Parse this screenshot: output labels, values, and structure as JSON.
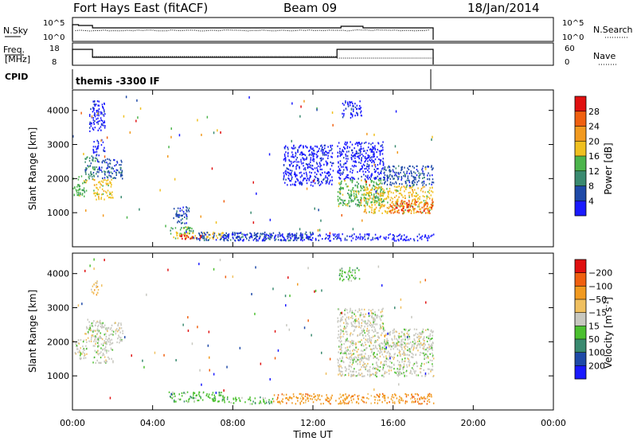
{
  "header": {
    "radar": "Fort Hays East (fitACF)",
    "beam": "Beam 09",
    "date": "18/Jan/2014"
  },
  "status_panels": {
    "nsky": {
      "label": "N.Sky",
      "left_ticks": [
        "10^5",
        "10^0"
      ],
      "right_ticks": [
        "10^5",
        "10^0"
      ],
      "right_label": "N.Search"
    },
    "freq": {
      "label_line1": "Freq.",
      "label_line2": "[MHz]",
      "left_ticks": [
        "18",
        "8"
      ],
      "right_ticks": [
        "60",
        "0"
      ],
      "right_label": "Nave"
    },
    "cpid": {
      "label": "CPID",
      "value": "themis -3300 IF"
    }
  },
  "chart_data": [
    {
      "type": "heatmap",
      "name": "power-panel",
      "ylabel": "Slant Range [km]",
      "xlabel": "",
      "xlim_hours": [
        0,
        24
      ],
      "ylim": [
        0,
        4600
      ],
      "y_ticks": [
        1000,
        2000,
        3000,
        4000
      ],
      "colorbar": {
        "label": "Power [dB]",
        "ticks": [
          "4",
          "8",
          "12",
          "16",
          "20",
          "24",
          "28"
        ],
        "colors": [
          "#1a1aff",
          "#1f4aa8",
          "#3a8a70",
          "#4cb54c",
          "#f0c020",
          "#f29a20",
          "#f06010",
          "#e01010"
        ]
      },
      "regions": [
        {
          "t0": 0.0,
          "t1": 0.7,
          "r0": 1500,
          "r1": 2100,
          "level": 3
        },
        {
          "t0": 0.6,
          "t1": 1.2,
          "r0": 2000,
          "r1": 2700,
          "level": 2
        },
        {
          "t0": 1.0,
          "t1": 2.0,
          "r0": 1400,
          "r1": 2000,
          "level": 4
        },
        {
          "t0": 1.2,
          "t1": 2.5,
          "r0": 2000,
          "r1": 2600,
          "level": 1
        },
        {
          "t0": 1.0,
          "t1": 1.6,
          "r0": 2700,
          "r1": 3200,
          "level": 0
        },
        {
          "t0": 0.8,
          "t1": 1.6,
          "r0": 3400,
          "r1": 4300,
          "level": 0
        },
        {
          "t0": 5.0,
          "t1": 5.8,
          "r0": 700,
          "r1": 1200,
          "level": 1
        },
        {
          "t0": 4.8,
          "t1": 6.0,
          "r0": 400,
          "r1": 600,
          "level": 3
        },
        {
          "t0": 5.0,
          "t1": 7.5,
          "r0": 250,
          "r1": 450,
          "level": 4
        },
        {
          "t0": 5.3,
          "t1": 6.4,
          "r0": 250,
          "r1": 380,
          "level": 7
        },
        {
          "t0": 6.0,
          "t1": 12.0,
          "r0": 200,
          "r1": 450,
          "level": 1
        },
        {
          "t0": 7.5,
          "t1": 18.0,
          "r0": 200,
          "r1": 400,
          "level": 0
        },
        {
          "t0": 13.2,
          "t1": 15.5,
          "r0": 1200,
          "r1": 2000,
          "level": 3
        },
        {
          "t0": 14.5,
          "t1": 18.0,
          "r0": 1000,
          "r1": 1800,
          "level": 4
        },
        {
          "t0": 15.8,
          "t1": 18.0,
          "r0": 1000,
          "r1": 1400,
          "level": 6
        },
        {
          "t0": 13.2,
          "t1": 15.5,
          "r0": 2000,
          "r1": 3100,
          "level": 0
        },
        {
          "t0": 15.5,
          "t1": 18.0,
          "r0": 1800,
          "r1": 2400,
          "level": 1
        },
        {
          "t0": 13.4,
          "t1": 14.4,
          "r0": 3800,
          "r1": 4300,
          "level": 0
        },
        {
          "t0": 10.5,
          "t1": 13.0,
          "r0": 1800,
          "r1": 3000,
          "level": 0
        }
      ]
    },
    {
      "type": "heatmap",
      "name": "velocity-panel",
      "ylabel": "Slant Range [km]",
      "xlabel": "Time UT",
      "xlim_hours": [
        0,
        24
      ],
      "ylim": [
        0,
        4600
      ],
      "y_ticks": [
        1000,
        2000,
        3000,
        4000
      ],
      "x_tick_labels": [
        "00:00",
        "04:00",
        "08:00",
        "12:00",
        "16:00",
        "20:00",
        "00:00"
      ],
      "colorbar": {
        "label": "Velocity [m s",
        "label_sup": "-1",
        "label_close": "]",
        "ticks": [
          "200",
          "100",
          "50",
          "15",
          "−15",
          "−50",
          "−100",
          "−200"
        ],
        "colors": [
          "#1a1aff",
          "#1f4aa8",
          "#3a8a70",
          "#4cc030",
          "#c8c8c0",
          "#f0c060",
          "#f29a20",
          "#f06010",
          "#e01010"
        ]
      },
      "regions": [
        {
          "t0": 0.0,
          "t1": 0.7,
          "r0": 1500,
          "r1": 2100,
          "level": 4
        },
        {
          "t0": 0.6,
          "t1": 1.4,
          "r0": 2000,
          "r1": 2700,
          "level": 4
        },
        {
          "t0": 1.0,
          "t1": 2.0,
          "r0": 1400,
          "r1": 2000,
          "level": 4
        },
        {
          "t0": 1.2,
          "t1": 2.5,
          "r0": 2000,
          "r1": 2600,
          "level": 4
        },
        {
          "t0": 0.9,
          "t1": 1.3,
          "r0": 3400,
          "r1": 3800,
          "level": 5
        },
        {
          "t0": 4.8,
          "t1": 7.5,
          "r0": 250,
          "r1": 550,
          "level": 3
        },
        {
          "t0": 7.5,
          "t1": 10.0,
          "r0": 200,
          "r1": 400,
          "level": 3
        },
        {
          "t0": 10.0,
          "t1": 18.0,
          "r0": 200,
          "r1": 500,
          "level": 6
        },
        {
          "t0": 13.2,
          "t1": 18.0,
          "r0": 1000,
          "r1": 2000,
          "level": 4
        },
        {
          "t0": 13.2,
          "t1": 15.5,
          "r0": 2000,
          "r1": 3000,
          "level": 4
        },
        {
          "t0": 15.5,
          "t1": 18.0,
          "r0": 1800,
          "r1": 2400,
          "level": 4
        },
        {
          "t0": 13.3,
          "t1": 14.3,
          "r0": 3800,
          "r1": 4200,
          "level": 3
        }
      ]
    }
  ]
}
